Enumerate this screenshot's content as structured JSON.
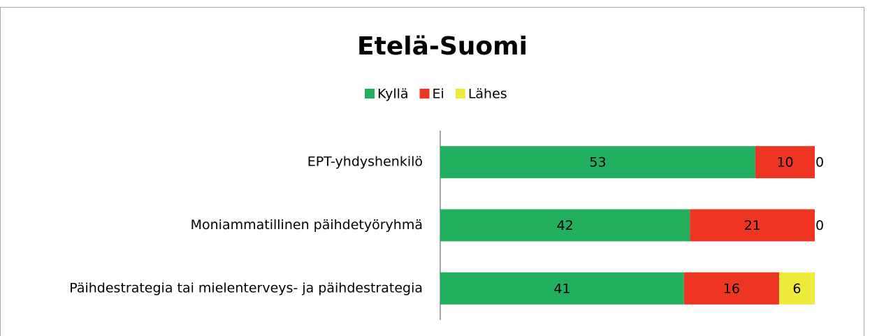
{
  "chart_data": {
    "type": "stacked-bar-horizontal",
    "title": "Etelä-Suomi",
    "categories": [
      "EPT-yhdyshenkilö",
      "Moniammatillinen päihdetyöryhmä",
      "Päihdestrategia tai mielenterveys- ja päihdestrategia"
    ],
    "series": [
      {
        "name": "Kyllä",
        "color": "#22b060",
        "values": [
          53,
          42,
          41
        ]
      },
      {
        "name": "Ei",
        "color": "#ee3524",
        "values": [
          10,
          21,
          16
        ]
      },
      {
        "name": "Lähes",
        "color": "#eeeb3c",
        "values": [
          0,
          0,
          6
        ]
      }
    ],
    "xlim": [
      0,
      63
    ]
  }
}
